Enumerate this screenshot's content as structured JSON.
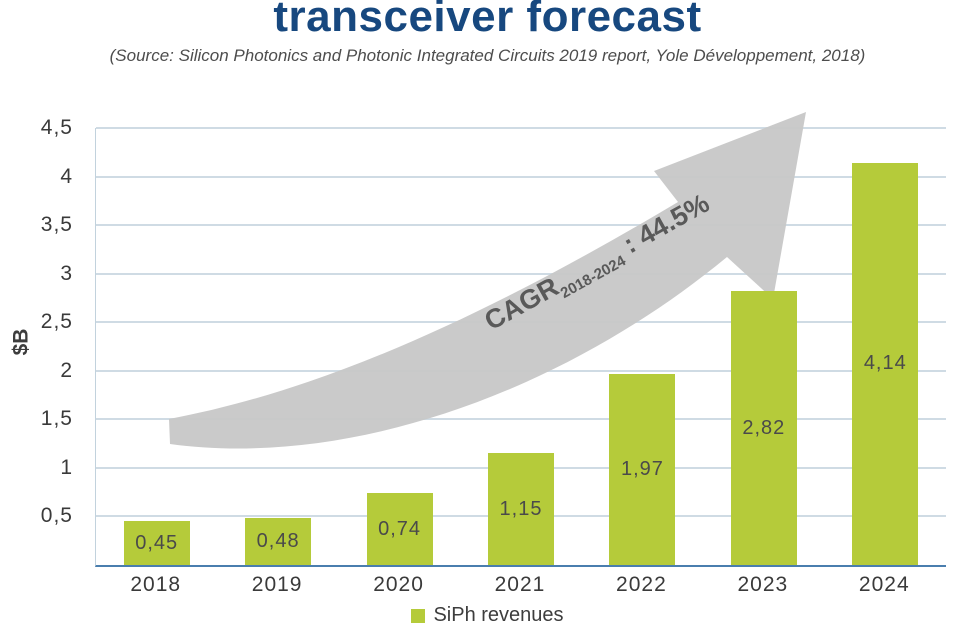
{
  "header": {
    "title": "transceiver forecast",
    "source": "(Source: Silicon Photonics and Photonic Integrated Circuits 2019 report, Yole Développement, 2018)"
  },
  "chart_data": {
    "type": "bar",
    "title": "transceiver forecast",
    "categories": [
      "2018",
      "2019",
      "2020",
      "2021",
      "2022",
      "2023",
      "2024"
    ],
    "values": [
      0.45,
      0.48,
      0.74,
      1.15,
      1.97,
      2.82,
      4.14
    ],
    "value_labels": [
      "0,45",
      "0,48",
      "0,74",
      "1,15",
      "1,97",
      "2,82",
      "4,14"
    ],
    "series_name": "SiPh revenues",
    "xlabel": "",
    "ylabel": "$B",
    "ylim": [
      0,
      4.5
    ],
    "ytick_step": 0.5,
    "ytick_labels": [
      "0,5",
      "1",
      "1,5",
      "2",
      "2,5",
      "3",
      "3,5",
      "4",
      "4,5"
    ],
    "grid": true,
    "legend": {
      "position": "bottom",
      "label": "SiPh revenues"
    },
    "annotation": {
      "text_main": "CAGR",
      "text_sub": "2018-2024",
      "text_rest": " : 44.5%",
      "full_text": "CAGR 2018-2024 : 44.5%"
    },
    "colors": {
      "bar": "#b5cb3a",
      "title": "#17487f",
      "annotation_arrow": "#c8c8c8",
      "grid": "#cfdbe4",
      "axis": "#4a7eae",
      "value_label": "#4a4a4a"
    }
  }
}
